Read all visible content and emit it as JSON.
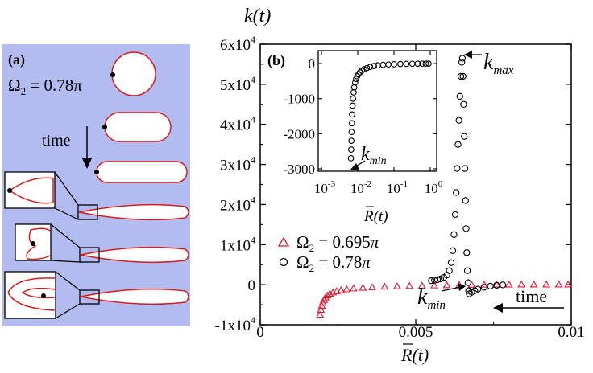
{
  "panel_a": {
    "label": "(a)",
    "omega_text": "Ω",
    "omega_sub": "2",
    "omega_value": " = 0.78π",
    "time_label": "time",
    "background": "#b3bcf0",
    "shape_color": "#d81b1b"
  },
  "colors": {
    "red_series": "#e8102a",
    "black_series": "#000000"
  },
  "chart_data": [
    {
      "type": "scatter",
      "panel": "(b)",
      "xlabel": "R(t)",
      "ylabel": "k(t)",
      "xlim": [
        0,
        0.01
      ],
      "ylim": [
        -10000,
        60000
      ],
      "x_ticks": [
        "0",
        "0.005",
        "0.01"
      ],
      "y_ticks": [
        {
          "value": -10000,
          "mantissa": "-1x10",
          "exp": "4"
        },
        {
          "value": 0,
          "mantissa": "0",
          "exp": ""
        },
        {
          "value": 10000,
          "mantissa": "1x10",
          "exp": "4"
        },
        {
          "value": 20000,
          "mantissa": "2x10",
          "exp": "4"
        },
        {
          "value": 30000,
          "mantissa": "3x10",
          "exp": "4"
        },
        {
          "value": 40000,
          "mantissa": "4x10",
          "exp": "4"
        },
        {
          "value": 50000,
          "mantissa": "5x10",
          "exp": "4"
        },
        {
          "value": 60000,
          "mantissa": "6x10",
          "exp": "4"
        }
      ],
      "legend": [
        "Ω2 = 0.695π",
        "Ω2 = 0.78π"
      ],
      "legend_position": "lower-left",
      "annotations": [
        "kmax",
        "kmin",
        "time"
      ],
      "series": [
        {
          "name": "Ω2 = 0.695π",
          "marker": "triangle",
          "points": [
            [
              0.00192,
              -7500
            ],
            [
              0.00195,
              -6300
            ],
            [
              0.00198,
              -5300
            ],
            [
              0.00201,
              -4500
            ],
            [
              0.00205,
              -3800
            ],
            [
              0.0021,
              -3200
            ],
            [
              0.00216,
              -2700
            ],
            [
              0.00224,
              -2300
            ],
            [
              0.00234,
              -1950
            ],
            [
              0.00246,
              -1650
            ],
            [
              0.0026,
              -1400
            ],
            [
              0.00278,
              -1150
            ],
            [
              0.003,
              -950
            ],
            [
              0.0033,
              -780
            ],
            [
              0.0036,
              -650
            ],
            [
              0.004,
              -520
            ],
            [
              0.0044,
              -420
            ],
            [
              0.0048,
              -330
            ],
            [
              0.0052,
              -260
            ],
            [
              0.0056,
              -190
            ],
            [
              0.006,
              -130
            ],
            [
              0.0064,
              -80
            ],
            [
              0.0068,
              -40
            ],
            [
              0.0072,
              -10
            ],
            [
              0.0076,
              10
            ],
            [
              0.008,
              25
            ],
            [
              0.0084,
              35
            ],
            [
              0.0088,
              40
            ],
            [
              0.0092,
              45
            ],
            [
              0.0096,
              45
            ],
            [
              0.0099,
              45
            ]
          ]
        },
        {
          "name": "Ω2 = 0.78π",
          "marker": "circle",
          "points": [
            [
              0.0055,
              1000
            ],
            [
              0.0056,
              1100
            ],
            [
              0.0057,
              1250
            ],
            [
              0.0058,
              1450
            ],
            [
              0.0059,
              1800
            ],
            [
              0.006,
              2400
            ],
            [
              0.00608,
              3500
            ],
            [
              0.00614,
              5500
            ],
            [
              0.00619,
              8500
            ],
            [
              0.00623,
              12500
            ],
            [
              0.00627,
              17500
            ],
            [
              0.0063,
              23000
            ],
            [
              0.00633,
              29000
            ],
            [
              0.00636,
              35000
            ],
            [
              0.00639,
              41000
            ],
            [
              0.00642,
              47000
            ],
            [
              0.00645,
              52000
            ],
            [
              0.00648,
              55500
            ],
            [
              0.0065,
              56500
            ],
            [
              0.00652,
              52000
            ],
            [
              0.00654,
              45000
            ],
            [
              0.00656,
              37000
            ],
            [
              0.00658,
              29000
            ],
            [
              0.0066,
              21000
            ],
            [
              0.00662,
              14000
            ],
            [
              0.00664,
              8000
            ],
            [
              0.00666,
              3500
            ],
            [
              0.00668,
              500
            ],
            [
              0.0067,
              -1500
            ],
            [
              0.00672,
              -2300
            ],
            [
              0.0068,
              -1900
            ],
            [
              0.0069,
              -1500
            ],
            [
              0.007,
              -1100
            ],
            [
              0.0072,
              -650
            ],
            [
              0.0074,
              -350
            ],
            [
              0.0076,
              -150
            ],
            [
              0.0078,
              -50
            ]
          ]
        }
      ]
    },
    {
      "type": "scatter",
      "panel": "inset",
      "xlabel": "R(t)",
      "x_scale": "log",
      "xlim": [
        0.001,
        1
      ],
      "ylim": [
        -3000,
        300
      ],
      "x_ticks": [
        {
          "mantissa": "10",
          "exp": "-3"
        },
        {
          "mantissa": "10",
          "exp": "-2"
        },
        {
          "mantissa": "10",
          "exp": "-1"
        },
        {
          "mantissa": "10",
          "exp": "0"
        }
      ],
      "y_ticks": [
        "0",
        "-1000",
        "-2000",
        "-3000"
      ],
      "annotations": [
        "kmin"
      ],
      "series": [
        {
          "name": "Ω2 = 0.78π",
          "marker": "circle",
          "points": [
            [
              0.0065,
              -2700
            ],
            [
              0.0066,
              -2450
            ],
            [
              0.0067,
              -2200
            ],
            [
              0.0068,
              -1950
            ],
            [
              0.0069,
              -1700
            ],
            [
              0.007,
              -1450
            ],
            [
              0.0072,
              -1200
            ],
            [
              0.0074,
              -1000
            ],
            [
              0.0077,
              -820
            ],
            [
              0.008,
              -680
            ],
            [
              0.0085,
              -540
            ],
            [
              0.009,
              -440
            ],
            [
              0.0097,
              -360
            ],
            [
              0.0105,
              -300
            ],
            [
              0.0115,
              -250
            ],
            [
              0.013,
              -200
            ],
            [
              0.015,
              -160
            ],
            [
              0.018,
              -125
            ],
            [
              0.022,
              -95
            ],
            [
              0.028,
              -70
            ],
            [
              0.036,
              -50
            ],
            [
              0.05,
              -35
            ],
            [
              0.07,
              -25
            ],
            [
              0.1,
              -18
            ],
            [
              0.15,
              -12
            ],
            [
              0.22,
              -8
            ],
            [
              0.32,
              -5
            ],
            [
              0.45,
              -3
            ],
            [
              0.6,
              -2
            ],
            [
              0.75,
              -1
            ],
            [
              0.9,
              0
            ]
          ]
        }
      ]
    }
  ]
}
